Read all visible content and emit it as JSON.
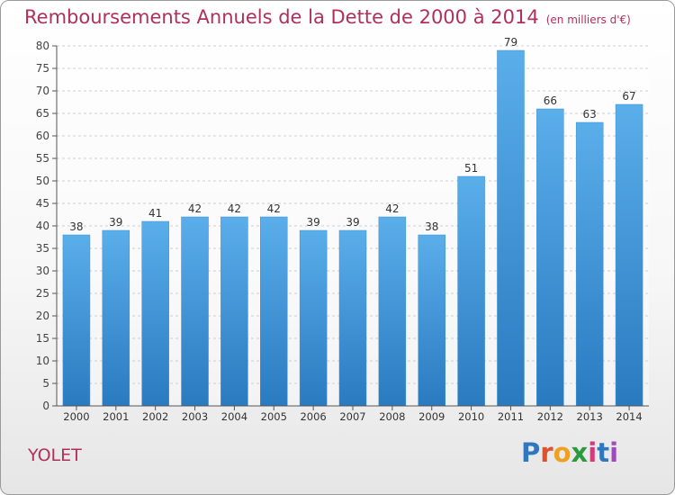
{
  "chart_data": {
    "type": "bar",
    "title": "Remboursements Annuels de la Dette de 2000 à 2014",
    "subtitle": "(en milliers d'€)",
    "categories": [
      "2000",
      "2001",
      "2002",
      "2003",
      "2004",
      "2005",
      "2006",
      "2007",
      "2008",
      "2009",
      "2010",
      "2011",
      "2012",
      "2013",
      "2014"
    ],
    "values": [
      38,
      39,
      41,
      42,
      42,
      42,
      39,
      39,
      42,
      38,
      51,
      79,
      66,
      63,
      67
    ],
    "ylim": [
      0,
      80
    ],
    "yticks": [
      0,
      5,
      10,
      15,
      20,
      25,
      30,
      35,
      40,
      45,
      50,
      55,
      60,
      65,
      70,
      75,
      80
    ],
    "grid": true,
    "bar_color": "#4ea2e0",
    "bar_color_dark": "#2a7ac0"
  },
  "commune": "YOLET",
  "logo": {
    "text": "Proxiti"
  },
  "colors": {
    "title": "#b0305a",
    "axis": "#555555",
    "grid": "#cfcfcf"
  }
}
